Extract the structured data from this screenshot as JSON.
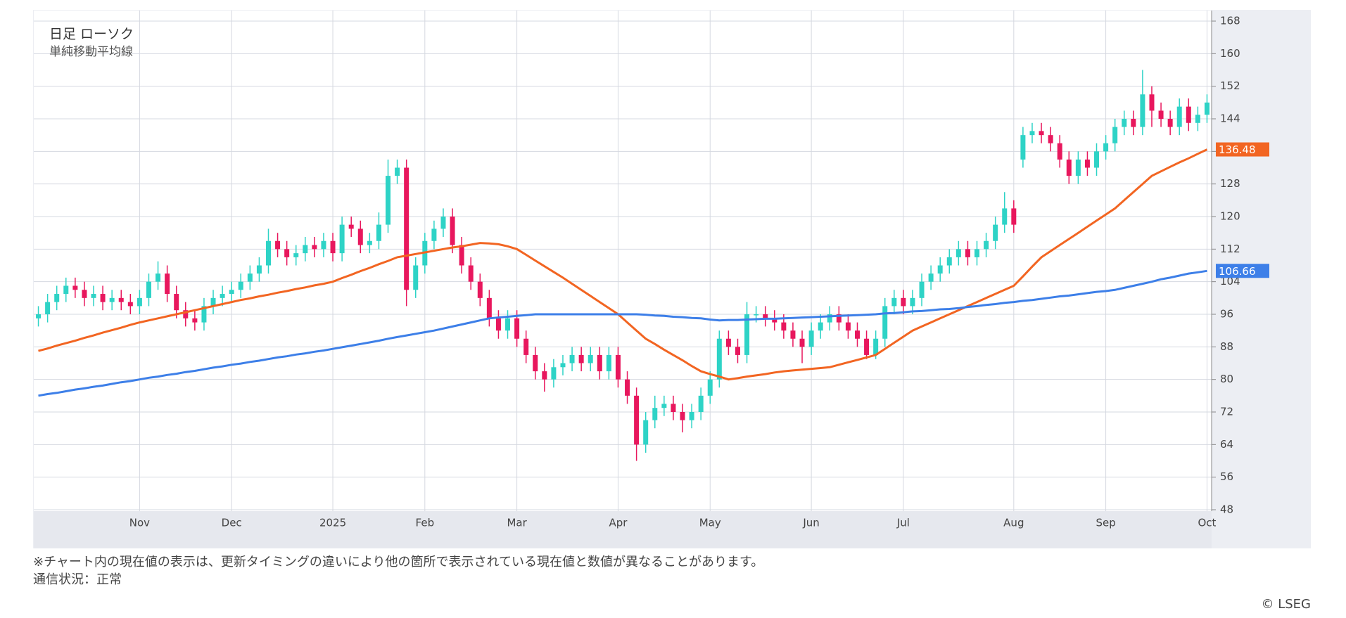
{
  "chart_data": {
    "type": "candlestick",
    "title": "日足 ローソク",
    "subtitle": "単純移動平均線",
    "categories": [
      null,
      null,
      null,
      null,
      null,
      null,
      null,
      null,
      null,
      null,
      null,
      "Nov",
      null,
      null,
      null,
      null,
      null,
      null,
      null,
      null,
      null,
      "Dec",
      null,
      null,
      null,
      null,
      null,
      null,
      null,
      null,
      null,
      null,
      "2025",
      null,
      null,
      null,
      null,
      null,
      null,
      null,
      null,
      null,
      "Feb",
      null,
      null,
      null,
      null,
      null,
      null,
      null,
      null,
      null,
      "Mar",
      null,
      null,
      null,
      null,
      null,
      null,
      null,
      null,
      null,
      null,
      "Apr",
      null,
      null,
      null,
      null,
      null,
      null,
      null,
      null,
      null,
      "May",
      null,
      null,
      null,
      null,
      null,
      null,
      null,
      null,
      null,
      null,
      "Jun",
      null,
      null,
      null,
      null,
      null,
      null,
      null,
      null,
      null,
      "Jul",
      null,
      null,
      null,
      null,
      null,
      null,
      null,
      null,
      null,
      null,
      null,
      "Aug",
      null,
      null,
      null,
      null,
      null,
      null,
      null,
      null,
      null,
      "Sep",
      null,
      null,
      null,
      null,
      null,
      null,
      null,
      null,
      null,
      null,
      "Oct"
    ],
    "open": [
      95,
      96,
      99,
      101,
      103,
      102,
      100,
      101,
      99,
      100,
      99,
      98,
      100,
      104,
      106,
      101,
      97,
      95,
      94,
      98,
      100,
      101,
      102,
      104,
      106,
      108,
      114,
      112,
      110,
      111,
      113,
      112,
      114,
      111,
      118,
      117,
      113,
      114,
      118,
      130,
      132,
      102,
      108,
      114,
      117,
      120,
      113,
      108,
      104,
      100,
      95,
      92,
      95,
      90,
      86,
      82,
      80,
      83,
      84,
      86,
      84,
      86,
      82,
      86,
      80,
      76,
      64,
      70,
      73,
      74,
      72,
      70,
      72,
      76,
      80,
      90,
      88,
      86,
      96,
      96,
      95,
      94,
      92,
      90,
      88,
      92,
      94,
      96,
      94,
      92,
      90,
      86,
      90,
      98,
      100,
      98,
      100,
      104,
      106,
      108,
      110,
      112,
      110,
      112,
      114,
      118,
      122,
      134,
      140,
      141,
      140,
      138,
      134,
      130,
      134,
      132,
      136,
      138,
      142,
      144,
      142,
      150,
      146,
      144,
      142,
      147,
      143,
      145
    ],
    "high": [
      98,
      101,
      103,
      105,
      105,
      104,
      103,
      103,
      102,
      102,
      101,
      102,
      106,
      109,
      108,
      103,
      99,
      97,
      100,
      102,
      103,
      104,
      106,
      108,
      110,
      117,
      116,
      114,
      113,
      115,
      115,
      116,
      116,
      120,
      120,
      119,
      116,
      121,
      134,
      134,
      134,
      110,
      116,
      119,
      122,
      122,
      115,
      110,
      106,
      102,
      97,
      97,
      97,
      92,
      88,
      84,
      85,
      86,
      88,
      88,
      88,
      88,
      88,
      88,
      82,
      78,
      72,
      76,
      76,
      76,
      74,
      74,
      78,
      82,
      92,
      92,
      90,
      99,
      98,
      98,
      97,
      96,
      94,
      92,
      94,
      96,
      98,
      98,
      96,
      94,
      92,
      92,
      100,
      102,
      102,
      102,
      106,
      108,
      110,
      112,
      114,
      114,
      114,
      116,
      120,
      126,
      124,
      142,
      143,
      143,
      142,
      140,
      136,
      136,
      136,
      138,
      140,
      144,
      146,
      146,
      156,
      152,
      148,
      146,
      149,
      149,
      147,
      150
    ],
    "low": [
      93,
      94,
      97,
      99,
      100,
      98,
      98,
      97,
      97,
      97,
      96,
      96,
      98,
      102,
      99,
      95,
      93,
      92,
      92,
      96,
      98,
      99,
      100,
      102,
      104,
      106,
      110,
      108,
      108,
      109,
      110,
      110,
      109,
      109,
      115,
      111,
      111,
      112,
      116,
      128,
      98,
      100,
      106,
      112,
      115,
      111,
      106,
      102,
      98,
      93,
      90,
      90,
      88,
      84,
      80,
      77,
      78,
      81,
      82,
      82,
      82,
      80,
      80,
      78,
      74,
      60,
      62,
      68,
      71,
      70,
      67,
      68,
      70,
      74,
      78,
      86,
      84,
      84,
      94,
      93,
      92,
      90,
      88,
      84,
      86,
      90,
      92,
      92,
      90,
      88,
      85,
      85,
      88,
      96,
      96,
      96,
      98,
      102,
      104,
      106,
      108,
      108,
      108,
      110,
      112,
      116,
      116,
      132,
      138,
      138,
      136,
      132,
      128,
      128,
      130,
      130,
      134,
      136,
      140,
      140,
      140,
      142,
      142,
      140,
      140,
      141,
      141,
      143
    ],
    "close": [
      96,
      99,
      101,
      103,
      102,
      100,
      101,
      99,
      100,
      99,
      98,
      100,
      104,
      106,
      101,
      97,
      95,
      94,
      98,
      100,
      101,
      102,
      104,
      106,
      108,
      114,
      112,
      110,
      111,
      113,
      112,
      114,
      111,
      118,
      117,
      113,
      114,
      118,
      130,
      132,
      102,
      108,
      114,
      117,
      120,
      113,
      108,
      104,
      100,
      95,
      92,
      95,
      90,
      86,
      82,
      80,
      83,
      84,
      86,
      84,
      86,
      82,
      86,
      80,
      76,
      64,
      70,
      73,
      74,
      72,
      70,
      72,
      76,
      80,
      90,
      88,
      86,
      96,
      96,
      95,
      94,
      92,
      90,
      88,
      92,
      94,
      96,
      94,
      92,
      90,
      86,
      90,
      98,
      100,
      98,
      100,
      104,
      106,
      108,
      110,
      112,
      110,
      112,
      114,
      118,
      122,
      118,
      140,
      141,
      140,
      138,
      134,
      130,
      134,
      132,
      136,
      138,
      142,
      144,
      142,
      150,
      146,
      144,
      142,
      147,
      143,
      145,
      148
    ],
    "up_color": "#2ed3c6",
    "down_color": "#e8175d",
    "series": [
      {
        "color": "#f26522",
        "values": [
          87,
          87.6,
          88.3,
          88.9,
          89.5,
          90.2,
          90.8,
          91.5,
          92.1,
          92.7,
          93.4,
          94,
          94.5,
          95,
          95.5,
          96,
          96.5,
          97,
          97.5,
          98,
          98.5,
          99,
          99.5,
          99.9,
          100.4,
          100.8,
          101.3,
          101.7,
          102.2,
          102.6,
          103.1,
          103.5,
          104,
          104.9,
          105.7,
          106.6,
          107.4,
          108.3,
          109.1,
          110,
          110.4,
          110.8,
          111.2,
          111.6,
          112,
          112.4,
          112.7,
          113.1,
          113.5,
          113.4,
          113.2,
          112.7,
          112,
          110.6,
          109.2,
          107.8,
          106.4,
          105,
          103.5,
          102,
          100.5,
          99,
          97.5,
          96,
          94,
          92,
          90,
          88.7,
          87.3,
          86,
          84.7,
          83.3,
          82,
          81.3,
          80.7,
          80,
          80.3,
          80.7,
          81,
          81.3,
          81.7,
          82,
          82.2,
          82.4,
          82.6,
          82.8,
          83,
          83.6,
          84.2,
          84.8,
          85.4,
          86,
          87.5,
          89,
          90.5,
          92,
          93,
          94,
          95,
          96,
          97,
          98,
          99,
          100,
          101,
          102,
          103,
          105.3,
          107.7,
          110,
          111.5,
          113,
          114.5,
          116,
          117.5,
          119,
          120.5,
          122,
          124,
          126,
          128,
          130,
          131.1,
          132.2,
          133.3,
          134.3,
          135.4,
          136.48
        ]
      },
      {
        "color": "#3d7fe8",
        "values": [
          76,
          76.4,
          76.7,
          77.1,
          77.5,
          77.8,
          78.2,
          78.5,
          78.9,
          79.3,
          79.6,
          80,
          80.4,
          80.7,
          81.1,
          81.4,
          81.8,
          82.1,
          82.5,
          82.9,
          83.2,
          83.6,
          83.9,
          84.3,
          84.6,
          85,
          85.4,
          85.7,
          86.1,
          86.4,
          86.8,
          87.1,
          87.5,
          87.9,
          88.3,
          88.7,
          89.1,
          89.5,
          90,
          90.4,
          90.8,
          91.2,
          91.6,
          92,
          92.5,
          93,
          93.5,
          94,
          94.5,
          95,
          95.2,
          95.4,
          95.6,
          95.8,
          96,
          96,
          96,
          96,
          96,
          96,
          96,
          96,
          96,
          96,
          96,
          96,
          95.9,
          95.7,
          95.6,
          95.4,
          95.3,
          95.1,
          95,
          94.7,
          94.5,
          94.6,
          94.6,
          94.7,
          94.8,
          94.9,
          94.9,
          95,
          95.1,
          95.2,
          95.3,
          95.4,
          95.5,
          95.6,
          95.7,
          95.8,
          95.9,
          96,
          96.2,
          96.3,
          96.5,
          96.7,
          96.8,
          97,
          97.2,
          97.3,
          97.5,
          97.8,
          98,
          98.3,
          98.5,
          98.8,
          99,
          99.3,
          99.5,
          99.8,
          100.1,
          100.4,
          100.6,
          100.9,
          101.2,
          101.5,
          101.7,
          102,
          102.5,
          103,
          103.5,
          104,
          104.6,
          105,
          105.5,
          106,
          106.3,
          106.66
        ]
      }
    ],
    "ylim": [
      48,
      168
    ],
    "yticks": [
      48,
      56,
      64,
      72,
      80,
      88,
      96,
      104,
      112,
      120,
      128,
      136,
      144,
      152,
      160,
      168
    ],
    "grid": true
  },
  "footer": {
    "notes": [
      "※チャート内の現在値の表示は、更新タイミングの違いにより他の箇所で表示されている現在値と数値が異なることがあります。",
      "通信状況：正常"
    ],
    "copyright": "© LSEG"
  }
}
